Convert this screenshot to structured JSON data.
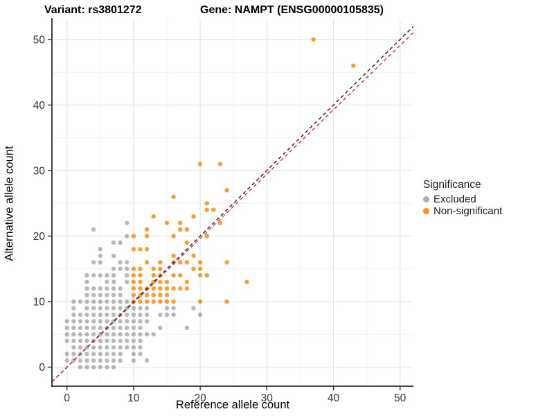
{
  "header": {
    "title_left": "Variant: rs3801272",
    "title_right": "Gene: NAMPT (ENSG00000105835)"
  },
  "chart_data": {
    "type": "scatter",
    "xlabel": "Reference allele count",
    "ylabel": "Alternative allele count",
    "xlim": [
      -2.3,
      52.3
    ],
    "ylim": [
      -2.3,
      53.0
    ],
    "x_ticks": [
      0,
      10,
      20,
      30,
      40,
      50
    ],
    "y_ticks": [
      0,
      10,
      20,
      30,
      40,
      50
    ],
    "x_minor_ticks": [
      5,
      15,
      25,
      35,
      45
    ],
    "y_minor_ticks": [
      5,
      15,
      25,
      35,
      45
    ],
    "grid": "major+minor",
    "legend": {
      "title": "Significance",
      "position": "right",
      "items": [
        {
          "label": "Excluded",
          "color": "#ADADAD"
        },
        {
          "label": "Non-significant",
          "color": "#F7941E"
        }
      ]
    },
    "lines": [
      {
        "name": "identity-line",
        "style": "dashed",
        "color": "#1A1A1A",
        "slope": 1.0,
        "intercept": 0
      },
      {
        "name": "fit-line",
        "style": "dashed",
        "color": "#E02B2B",
        "slope": 0.982,
        "intercept": 0
      }
    ],
    "series": [
      {
        "name": "Excluded",
        "color": "#808080",
        "opacity": 0.55,
        "points": [
          [
            2,
            0
          ],
          [
            3,
            0
          ],
          [
            4,
            0
          ],
          [
            5,
            0
          ],
          [
            6,
            0
          ],
          [
            7,
            0
          ],
          [
            0,
            1
          ],
          [
            1,
            1
          ],
          [
            2,
            1
          ],
          [
            3,
            1
          ],
          [
            4,
            1
          ],
          [
            5,
            1
          ],
          [
            6,
            1
          ],
          [
            7,
            1
          ],
          [
            8,
            1
          ],
          [
            10,
            1
          ],
          [
            12,
            1
          ],
          [
            0,
            2
          ],
          [
            1,
            2
          ],
          [
            2,
            2
          ],
          [
            3,
            2
          ],
          [
            4,
            2
          ],
          [
            5,
            2
          ],
          [
            6,
            2
          ],
          [
            7,
            2
          ],
          [
            8,
            2
          ],
          [
            10,
            2
          ],
          [
            11,
            2
          ],
          [
            1,
            3
          ],
          [
            2,
            3
          ],
          [
            3,
            3
          ],
          [
            4,
            3
          ],
          [
            5,
            3
          ],
          [
            6,
            3
          ],
          [
            7,
            3
          ],
          [
            8,
            3
          ],
          [
            9,
            3
          ],
          [
            10,
            3
          ],
          [
            11,
            3
          ],
          [
            0,
            4
          ],
          [
            1,
            4
          ],
          [
            2,
            4
          ],
          [
            3,
            4
          ],
          [
            4,
            4
          ],
          [
            5,
            4
          ],
          [
            6,
            4
          ],
          [
            7,
            4
          ],
          [
            8,
            4
          ],
          [
            9,
            4
          ],
          [
            10,
            4
          ],
          [
            11,
            4
          ],
          [
            0,
            5
          ],
          [
            1,
            5
          ],
          [
            2,
            5
          ],
          [
            3,
            5
          ],
          [
            4,
            5
          ],
          [
            5,
            5
          ],
          [
            6,
            5
          ],
          [
            7,
            5
          ],
          [
            8,
            5
          ],
          [
            9,
            5
          ],
          [
            10,
            5
          ],
          [
            11,
            5
          ],
          [
            12,
            5
          ],
          [
            13,
            5
          ],
          [
            0,
            6
          ],
          [
            1,
            6
          ],
          [
            2,
            6
          ],
          [
            3,
            6
          ],
          [
            4,
            6
          ],
          [
            5,
            6
          ],
          [
            6,
            6
          ],
          [
            7,
            6
          ],
          [
            8,
            6
          ],
          [
            9,
            6
          ],
          [
            10,
            6
          ],
          [
            11,
            6
          ],
          [
            14,
            6
          ],
          [
            18,
            6
          ],
          [
            0,
            7
          ],
          [
            1,
            7
          ],
          [
            2,
            7
          ],
          [
            3,
            7
          ],
          [
            4,
            7
          ],
          [
            5,
            7
          ],
          [
            6,
            7
          ],
          [
            7,
            7
          ],
          [
            8,
            7
          ],
          [
            9,
            7
          ],
          [
            10,
            7
          ],
          [
            11,
            7
          ],
          [
            12,
            7
          ],
          [
            1,
            8
          ],
          [
            2,
            8
          ],
          [
            3,
            8
          ],
          [
            4,
            8
          ],
          [
            5,
            8
          ],
          [
            6,
            8
          ],
          [
            7,
            8
          ],
          [
            8,
            8
          ],
          [
            9,
            8
          ],
          [
            10,
            8
          ],
          [
            11,
            8
          ],
          [
            12,
            8
          ],
          [
            14,
            8
          ],
          [
            15,
            8
          ],
          [
            16,
            8
          ],
          [
            20,
            8
          ],
          [
            1,
            9
          ],
          [
            3,
            9
          ],
          [
            4,
            9
          ],
          [
            5,
            9
          ],
          [
            6,
            9
          ],
          [
            7,
            9
          ],
          [
            8,
            9
          ],
          [
            9,
            9
          ],
          [
            10,
            9
          ],
          [
            11,
            9
          ],
          [
            12,
            9
          ],
          [
            15,
            9
          ],
          [
            16,
            9
          ],
          [
            19,
            9
          ],
          [
            1,
            10
          ],
          [
            2,
            10
          ],
          [
            3,
            10
          ],
          [
            4,
            10
          ],
          [
            5,
            10
          ],
          [
            6,
            10
          ],
          [
            7,
            10
          ],
          [
            8,
            10
          ],
          [
            9,
            10
          ],
          [
            3,
            11
          ],
          [
            4,
            11
          ],
          [
            5,
            11
          ],
          [
            6,
            11
          ],
          [
            7,
            11
          ],
          [
            8,
            11
          ],
          [
            3,
            12
          ],
          [
            4,
            12
          ],
          [
            5,
            12
          ],
          [
            6,
            12
          ],
          [
            7,
            12
          ],
          [
            8,
            12
          ],
          [
            3,
            13
          ],
          [
            6,
            13
          ],
          [
            7,
            13
          ],
          [
            9,
            13
          ],
          [
            3,
            14
          ],
          [
            4,
            14
          ],
          [
            5,
            14
          ],
          [
            6,
            14
          ],
          [
            7,
            14
          ],
          [
            9,
            14
          ],
          [
            7,
            15
          ],
          [
            8,
            15
          ],
          [
            9,
            15
          ],
          [
            4,
            16
          ],
          [
            5,
            16
          ],
          [
            8,
            16
          ],
          [
            9,
            16
          ],
          [
            5,
            17
          ],
          [
            7,
            17
          ],
          [
            5,
            18
          ],
          [
            7,
            19
          ],
          [
            8,
            19
          ],
          [
            9,
            20
          ],
          [
            4,
            21
          ],
          [
            9,
            22
          ]
        ]
      },
      {
        "name": "Non-significant",
        "color": "#F78D15",
        "opacity": 0.85,
        "points": [
          [
            10,
            10
          ],
          [
            11,
            10
          ],
          [
            12,
            10
          ],
          [
            13,
            10
          ],
          [
            14,
            10
          ],
          [
            15,
            10
          ],
          [
            16,
            10
          ],
          [
            20,
            10
          ],
          [
            24,
            10
          ],
          [
            10,
            11
          ],
          [
            11,
            11
          ],
          [
            12,
            11
          ],
          [
            13,
            11
          ],
          [
            14,
            11
          ],
          [
            15,
            11
          ],
          [
            10,
            12
          ],
          [
            11,
            12
          ],
          [
            12,
            12
          ],
          [
            13,
            12
          ],
          [
            14,
            12
          ],
          [
            15,
            12
          ],
          [
            16,
            12
          ],
          [
            17,
            12
          ],
          [
            18,
            12
          ],
          [
            10,
            13
          ],
          [
            11,
            13
          ],
          [
            13,
            13
          ],
          [
            14,
            13
          ],
          [
            15,
            13
          ],
          [
            18,
            13
          ],
          [
            27,
            13
          ],
          [
            10,
            14
          ],
          [
            11,
            14
          ],
          [
            13,
            14
          ],
          [
            14,
            14
          ],
          [
            16,
            14
          ],
          [
            17,
            14
          ],
          [
            20,
            14
          ],
          [
            21,
            14
          ],
          [
            10,
            15
          ],
          [
            11,
            15
          ],
          [
            13,
            15
          ],
          [
            14,
            15
          ],
          [
            19,
            15
          ],
          [
            20,
            15
          ],
          [
            12,
            16
          ],
          [
            14,
            16
          ],
          [
            16,
            16
          ],
          [
            17,
            16
          ],
          [
            18,
            16
          ],
          [
            20,
            16
          ],
          [
            24,
            16
          ],
          [
            16,
            17
          ],
          [
            19,
            17
          ],
          [
            10,
            18
          ],
          [
            11,
            18
          ],
          [
            12,
            18
          ],
          [
            18,
            19
          ],
          [
            10,
            20
          ],
          [
            12,
            20
          ],
          [
            16,
            20
          ],
          [
            21,
            20
          ],
          [
            12,
            21
          ],
          [
            17,
            21
          ],
          [
            18,
            21
          ],
          [
            15,
            22
          ],
          [
            17,
            22
          ],
          [
            23,
            22
          ],
          [
            13,
            23
          ],
          [
            19,
            23
          ],
          [
            21,
            24
          ],
          [
            22,
            24
          ],
          [
            21,
            25
          ],
          [
            16,
            26
          ],
          [
            24,
            27
          ],
          [
            20,
            31
          ],
          [
            23,
            31
          ],
          [
            43,
            46
          ],
          [
            37,
            50
          ]
        ]
      }
    ]
  }
}
